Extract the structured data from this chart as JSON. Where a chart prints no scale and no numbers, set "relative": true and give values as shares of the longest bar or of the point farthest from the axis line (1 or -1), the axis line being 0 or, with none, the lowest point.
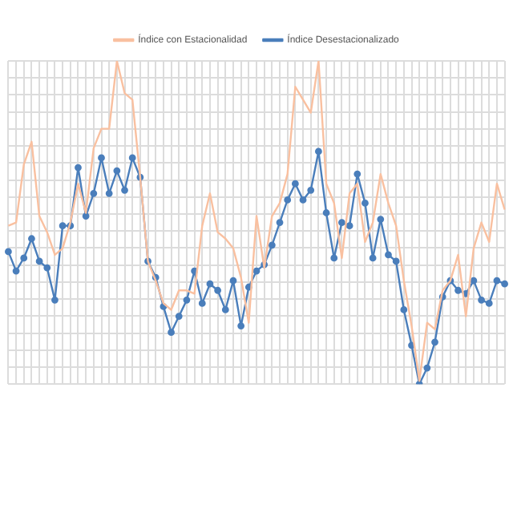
{
  "chart_data": {
    "type": "line",
    "relative": true,
    "grid": true,
    "legend": "top",
    "categories": [
      null,
      null,
      null,
      null,
      null,
      null,
      null,
      null,
      null,
      null,
      null,
      null,
      null,
      null,
      null,
      null,
      null,
      null,
      null,
      null,
      null,
      null,
      null,
      null,
      null,
      null,
      null,
      null,
      null,
      null,
      null,
      null,
      null,
      null,
      null,
      null,
      null,
      null,
      null,
      null,
      null,
      null,
      null,
      null,
      null,
      null,
      null,
      null,
      null,
      null,
      null,
      null,
      null,
      null,
      null,
      null,
      null,
      null,
      null,
      null,
      null,
      null,
      null,
      null,
      null
    ],
    "series": [
      {
        "name": "Índice Desestacionalizado",
        "color": "#4a7ebb",
        "marker": "circle",
        "values": [
          0.41,
          0.35,
          0.39,
          0.45,
          0.38,
          0.36,
          0.26,
          0.49,
          0.49,
          0.67,
          0.52,
          0.59,
          0.7,
          0.59,
          0.66,
          0.6,
          0.7,
          0.64,
          0.38,
          0.33,
          0.24,
          0.16,
          0.21,
          0.26,
          0.35,
          0.25,
          0.31,
          0.29,
          0.23,
          0.32,
          0.18,
          0.3,
          0.35,
          0.37,
          0.43,
          0.5,
          0.57,
          0.62,
          0.57,
          0.6,
          0.72,
          0.53,
          0.39,
          0.5,
          0.49,
          0.65,
          0.56,
          0.39,
          0.51,
          0.4,
          0.38,
          0.23,
          0.12,
          0,
          0.05,
          0.13,
          0.27,
          0.32,
          0.29,
          0.28,
          0.32,
          0.26,
          0.25,
          0.32,
          0.31
        ]
      },
      {
        "name": "Índice con Estacionalidad",
        "color": "#f9c0a0",
        "marker": "none",
        "values": [
          0.49,
          0.5,
          0.68,
          0.75,
          0.52,
          0.47,
          0.4,
          0.42,
          0.5,
          0.62,
          0.53,
          0.73,
          0.79,
          0.79,
          1,
          0.9,
          0.88,
          0.64,
          0.38,
          0.32,
          0.25,
          0.23,
          0.29,
          0.29,
          0.28,
          0.49,
          0.59,
          0.47,
          0.45,
          0.42,
          0.33,
          0.19,
          0.52,
          0.36,
          0.52,
          0.56,
          0.65,
          0.92,
          0.88,
          0.84,
          1,
          0.62,
          0.56,
          0.39,
          0.59,
          0.62,
          0.44,
          0.5,
          0.65,
          0.56,
          0.49,
          0.32,
          0.18,
          0.01,
          0.19,
          0.17,
          0.29,
          0.32,
          0.4,
          0.21,
          0.42,
          0.5,
          0.44,
          0.62,
          0.54
        ]
      }
    ]
  }
}
